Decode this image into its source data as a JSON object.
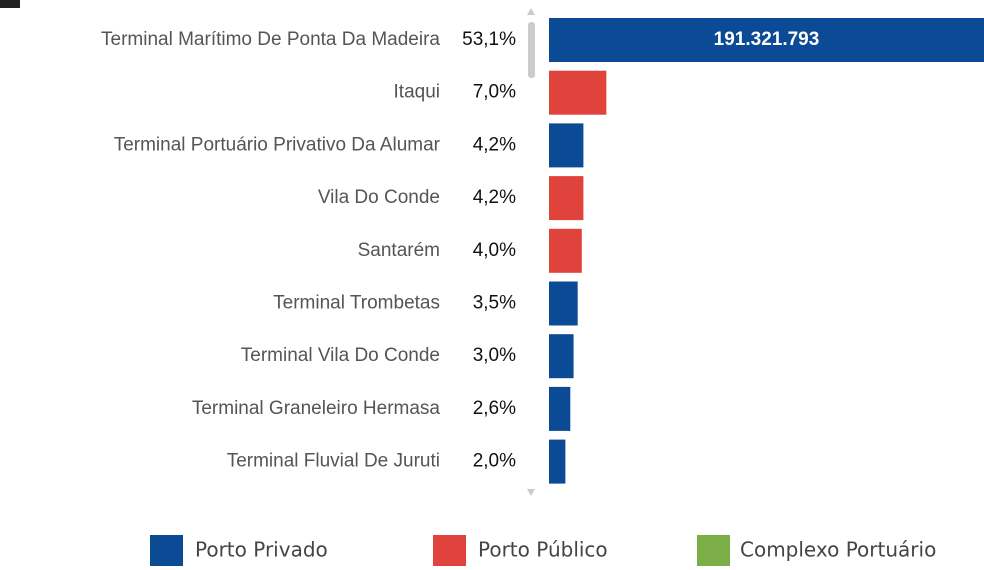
{
  "chart_data": {
    "type": "bar",
    "categories": [
      "Terminal Marítimo De Ponta Da Madeira",
      "Itaqui",
      "Terminal Portuário Privativo Da Alumar",
      "Vila Do Conde",
      "Santarém",
      "Terminal Trombetas",
      "Terminal Vila Do Conde",
      "Terminal Graneleiro Hermasa",
      "Terminal Fluvial De Juruti"
    ],
    "values": [
      53.1,
      7.0,
      4.2,
      4.2,
      4.0,
      3.5,
      3.0,
      2.6,
      2.0
    ],
    "value_labels": [
      "53,1%",
      "7,0%",
      "4,2%",
      "4,2%",
      "4,0%",
      "3,5%",
      "3,0%",
      "2,6%",
      "2,0%"
    ],
    "colors": [
      "#0b4a94",
      "#e0433c",
      "#0b4a94",
      "#e0433c",
      "#e0433c",
      "#0b4a94",
      "#0b4a94",
      "#0b4a94",
      "#0b4a94"
    ],
    "annotation": {
      "value": 191321793,
      "label": "191.321.793"
    },
    "legend": [
      {
        "name": "Porto Privado",
        "color": "#0b4a94"
      },
      {
        "name": "Porto Público",
        "color": "#e0433c"
      },
      {
        "name": "Complexo Portuário",
        "color": "#7cae48"
      }
    ]
  }
}
